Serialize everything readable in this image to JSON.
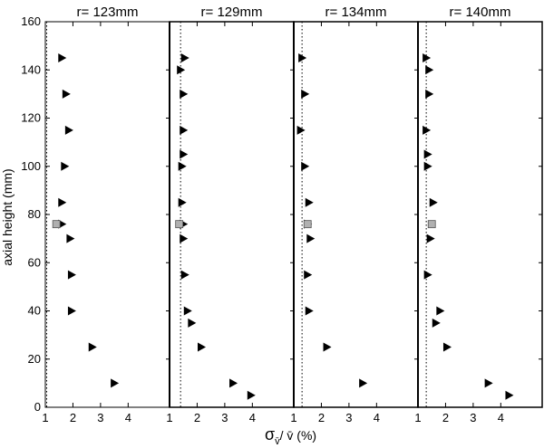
{
  "chart_data": [
    {
      "type": "scatter",
      "title": "r= 123mm",
      "xlim": [
        1,
        5.5
      ],
      "ylim": [
        0,
        160
      ],
      "x_ticks": [
        1,
        2,
        3,
        4
      ],
      "reference_line_x": 1.05,
      "series": [
        {
          "marker": "triangle-right",
          "color": "#000000",
          "points": [
            [
              1.6,
              145
            ],
            [
              1.75,
              130
            ],
            [
              1.85,
              115
            ],
            [
              1.7,
              100
            ],
            [
              1.6,
              85
            ],
            [
              1.6,
              76
            ],
            [
              1.9,
              70
            ],
            [
              1.95,
              55
            ],
            [
              1.95,
              40
            ],
            [
              2.7,
              25
            ],
            [
              3.5,
              10
            ]
          ]
        },
        {
          "marker": "square",
          "color": "#b0b0b0",
          "points": [
            [
              1.4,
              76
            ]
          ]
        }
      ]
    },
    {
      "type": "scatter",
      "title": "r= 129mm",
      "xlim": [
        1,
        5.5
      ],
      "ylim": [
        0,
        160
      ],
      "x_ticks": [
        1,
        2,
        3,
        4
      ],
      "reference_line_x": 1.4,
      "series": [
        {
          "marker": "triangle-right",
          "color": "#000000",
          "points": [
            [
              1.55,
              145
            ],
            [
              1.4,
              140
            ],
            [
              1.5,
              130
            ],
            [
              1.5,
              115
            ],
            [
              1.5,
              105
            ],
            [
              1.45,
              100
            ],
            [
              1.45,
              85
            ],
            [
              1.5,
              76
            ],
            [
              1.5,
              70
            ],
            [
              1.55,
              55
            ],
            [
              1.65,
              40
            ],
            [
              1.8,
              35
            ],
            [
              2.15,
              25
            ],
            [
              3.3,
              10
            ],
            [
              3.95,
              5
            ]
          ]
        },
        {
          "marker": "square",
          "color": "#b0b0b0",
          "points": [
            [
              1.35,
              76
            ]
          ]
        }
      ]
    },
    {
      "type": "scatter",
      "title": "r= 134mm",
      "xlim": [
        1,
        5.5
      ],
      "ylim": [
        0,
        160
      ],
      "x_ticks": [
        1,
        2,
        3,
        4
      ],
      "reference_line_x": 1.3,
      "series": [
        {
          "marker": "triangle-right",
          "color": "#000000",
          "points": [
            [
              1.3,
              145
            ],
            [
              1.4,
              130
            ],
            [
              1.25,
              115
            ],
            [
              1.4,
              100
            ],
            [
              1.55,
              85
            ],
            [
              1.5,
              76
            ],
            [
              1.6,
              70
            ],
            [
              1.5,
              55
            ],
            [
              1.55,
              40
            ],
            [
              2.2,
              25
            ],
            [
              3.5,
              10
            ]
          ]
        },
        {
          "marker": "square",
          "color": "#b0b0b0",
          "points": [
            [
              1.5,
              76
            ]
          ]
        }
      ]
    },
    {
      "type": "scatter",
      "title": "r= 140mm",
      "xlim": [
        1,
        5.5
      ],
      "ylim": [
        0,
        160
      ],
      "x_ticks": [
        1,
        2,
        3,
        4
      ],
      "reference_line_x": 1.3,
      "series": [
        {
          "marker": "triangle-right",
          "color": "#000000",
          "points": [
            [
              1.3,
              145
            ],
            [
              1.4,
              140
            ],
            [
              1.4,
              130
            ],
            [
              1.3,
              115
            ],
            [
              1.35,
              105
            ],
            [
              1.35,
              100
            ],
            [
              1.55,
              85
            ],
            [
              1.45,
              70
            ],
            [
              1.35,
              55
            ],
            [
              1.8,
              40
            ],
            [
              1.65,
              35
            ],
            [
              2.05,
              25
            ],
            [
              3.55,
              10
            ],
            [
              4.3,
              5
            ]
          ]
        },
        {
          "marker": "square",
          "color": "#b0b0b0",
          "points": [
            [
              1.5,
              76
            ]
          ]
        }
      ]
    }
  ],
  "y_axis": {
    "label": "axial height (mm)",
    "ticks": [
      0,
      20,
      40,
      60,
      80,
      100,
      120,
      140,
      160
    ]
  },
  "x_axis": {
    "label_symbol": "σ",
    "label_subscript": "v̄",
    "label_rest": "/ v̄  (%)"
  }
}
